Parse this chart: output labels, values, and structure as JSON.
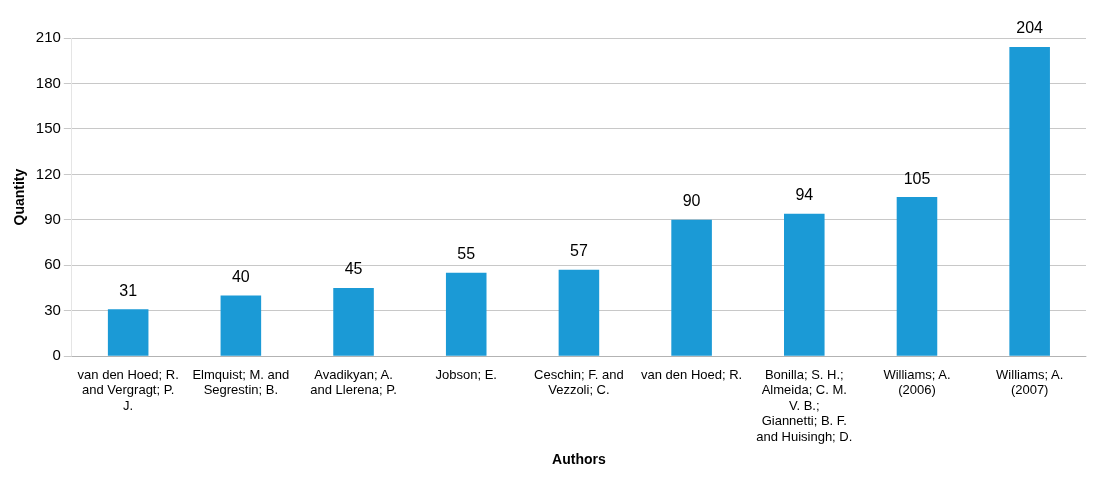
{
  "chart_data": {
    "type": "bar",
    "xlabel": "Authors",
    "ylabel": "Quantity",
    "categories": [
      "van den Hoed; R. and Vergragt; P. J.",
      "Elmquist; M. and Segrestin; B.",
      "Avadikyan; A. and Llerena; P.",
      "Jobson; E.",
      "Ceschin; F. and Vezzoli; C.",
      "van den Hoed; R.",
      "Bonilla; S. H.; Almeida; C. M. V. B.; Giannetti; B. F. and Huisingh; D.",
      "Williams; A. (2006)",
      "Williams; A. (2007)"
    ],
    "values": [
      31,
      40,
      45,
      55,
      57,
      90,
      94,
      105,
      204
    ],
    "color": "#1b9ad6",
    "ylim": [
      0,
      210
    ],
    "yticks": [
      0,
      30,
      60,
      90,
      120,
      150,
      180,
      210
    ],
    "grid": "y",
    "data_labels": true
  }
}
